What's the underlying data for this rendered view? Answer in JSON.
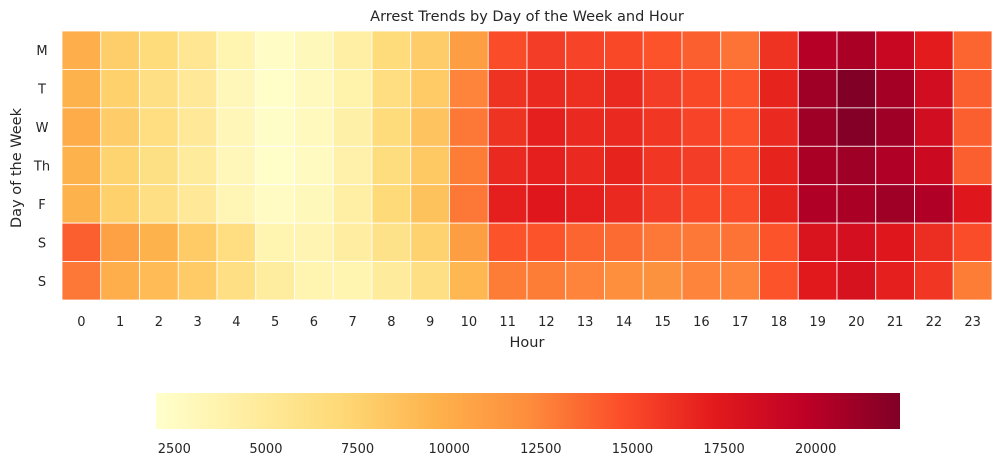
{
  "chart_data": {
    "type": "heatmap",
    "title": "Arrest Trends by Day of the Week and Hour",
    "xlabel": "Hour",
    "ylabel": "Day of the Week",
    "x_categories": [
      "0",
      "1",
      "2",
      "3",
      "4",
      "5",
      "6",
      "7",
      "8",
      "9",
      "10",
      "11",
      "12",
      "13",
      "14",
      "15",
      "16",
      "17",
      "18",
      "19",
      "20",
      "21",
      "22",
      "23"
    ],
    "y_categories": [
      "M",
      "T",
      "W",
      "Th",
      "F",
      "S",
      "S"
    ],
    "colormap": "YlOrRd",
    "color_range": [
      2000,
      22300
    ],
    "colorbar": {
      "orientation": "horizontal",
      "placement": "bottom",
      "ticks": [
        2500,
        5000,
        7500,
        10000,
        12500,
        15000,
        17500,
        20000
      ],
      "tick_labels": [
        "2500",
        "5000",
        "7500",
        "10000",
        "12500",
        "15000",
        "17500",
        "20000"
      ]
    },
    "grid": false,
    "values": [
      [
        9800,
        7800,
        6700,
        5400,
        3600,
        2400,
        3000,
        4300,
        6800,
        7900,
        11000,
        14800,
        15500,
        15200,
        15000,
        14500,
        14000,
        13200,
        16000,
        20000,
        20500,
        19000,
        17200,
        13800
      ],
      [
        9600,
        7600,
        6300,
        5000,
        3100,
        2200,
        2800,
        3900,
        6500,
        8000,
        12500,
        16000,
        16500,
        16200,
        16500,
        15500,
        15000,
        14500,
        16800,
        21000,
        22300,
        20800,
        18500,
        14000
      ],
      [
        10000,
        7900,
        6400,
        5000,
        3200,
        2300,
        2800,
        4100,
        6800,
        8500,
        13000,
        16000,
        17000,
        16500,
        16500,
        15800,
        15200,
        14600,
        16500,
        21000,
        22100,
        21000,
        18500,
        14000
      ],
      [
        9600,
        7400,
        6200,
        4800,
        3100,
        2200,
        2700,
        4000,
        6600,
        8200,
        12800,
        16500,
        17000,
        16500,
        16800,
        15800,
        15500,
        14800,
        16800,
        20500,
        21000,
        20300,
        18800,
        14000
      ],
      [
        9600,
        7600,
        6300,
        5000,
        3400,
        2500,
        3000,
        4300,
        6900,
        8600,
        13000,
        17000,
        17500,
        17000,
        16500,
        15500,
        15000,
        14800,
        16800,
        20300,
        20500,
        21000,
        20300,
        17500
      ],
      [
        14000,
        10800,
        9600,
        8000,
        6400,
        3600,
        3500,
        4400,
        5900,
        7500,
        11000,
        14500,
        14500,
        13800,
        13500,
        13000,
        13000,
        13200,
        14500,
        17800,
        18200,
        17500,
        16300,
        14800
      ],
      [
        13000,
        9900,
        9000,
        8000,
        6300,
        4600,
        3600,
        3600,
        4800,
        6300,
        9300,
        12800,
        12800,
        12500,
        12000,
        11800,
        12500,
        12500,
        14500,
        17300,
        18000,
        17000,
        15800,
        12800
      ]
    ]
  }
}
